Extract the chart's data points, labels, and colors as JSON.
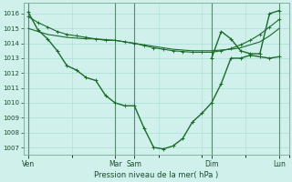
{
  "bg_color": "#cff0eb",
  "grid_color": "#aaddd8",
  "line_color": "#1a6b2a",
  "xlabel": "Pression niveau de la mer( hPa )",
  "ylim": [
    1006.5,
    1016.7
  ],
  "yticks": [
    1007,
    1008,
    1009,
    1010,
    1011,
    1012,
    1013,
    1014,
    1015,
    1016
  ],
  "day_labels": [
    "Ven",
    "Mar",
    "Sam",
    "Dim",
    "Lun"
  ],
  "day_positions": [
    0,
    9,
    11,
    19,
    26
  ],
  "xlim": [
    -0.5,
    27
  ],
  "vline_positions": [
    0,
    9,
    11,
    19,
    26
  ],
  "line1_x": [
    0,
    1,
    2,
    3,
    4,
    5,
    6,
    7,
    8,
    9,
    10,
    11,
    12,
    13,
    14,
    15,
    16,
    17,
    18,
    19,
    20,
    21,
    22,
    23,
    24,
    25,
    26
  ],
  "line1_y": [
    1015.0,
    1014.8,
    1014.6,
    1014.5,
    1014.4,
    1014.35,
    1014.3,
    1014.3,
    1014.2,
    1014.2,
    1014.1,
    1014.0,
    1013.9,
    1013.8,
    1013.7,
    1013.6,
    1013.55,
    1013.5,
    1013.5,
    1013.5,
    1013.55,
    1013.6,
    1013.7,
    1013.9,
    1014.1,
    1014.5,
    1015.0
  ],
  "line2_x": [
    0,
    1,
    2,
    3,
    4,
    5,
    6,
    7,
    8,
    9,
    10,
    11,
    12,
    13,
    14,
    15,
    16,
    17,
    18,
    19,
    20,
    21,
    22,
    23,
    24,
    25,
    26
  ],
  "line2_y": [
    1015.8,
    1015.4,
    1015.1,
    1014.8,
    1014.6,
    1014.5,
    1014.4,
    1014.3,
    1014.25,
    1014.2,
    1014.1,
    1014.0,
    1013.85,
    1013.7,
    1013.6,
    1013.5,
    1013.45,
    1013.4,
    1013.4,
    1013.4,
    1013.5,
    1013.65,
    1013.9,
    1014.2,
    1014.6,
    1015.1,
    1015.6
  ],
  "line3_x": [
    0,
    1,
    2,
    3,
    4,
    5,
    6,
    7,
    8,
    9,
    10,
    11,
    12,
    13,
    14,
    15,
    16,
    17,
    18,
    19,
    20,
    21,
    22,
    23,
    24,
    25,
    26
  ],
  "line3_y": [
    1016.1,
    1014.9,
    1014.3,
    1013.5,
    1012.5,
    1012.2,
    1011.7,
    1011.5,
    1010.5,
    1010.0,
    1009.8,
    1009.8,
    1008.3,
    1007.0,
    1006.9,
    1007.1,
    1007.6,
    1008.7,
    1009.3,
    1010.0,
    1011.3,
    1013.0,
    1013.0,
    1013.2,
    1013.1,
    1013.0,
    1013.1
  ],
  "line3_right_x": [
    19,
    20,
    21,
    22,
    23,
    24,
    25,
    26
  ],
  "line3_right_y": [
    1013.0,
    1014.8,
    1014.3,
    1013.5,
    1013.3,
    1013.3,
    1016.0,
    1016.2
  ]
}
